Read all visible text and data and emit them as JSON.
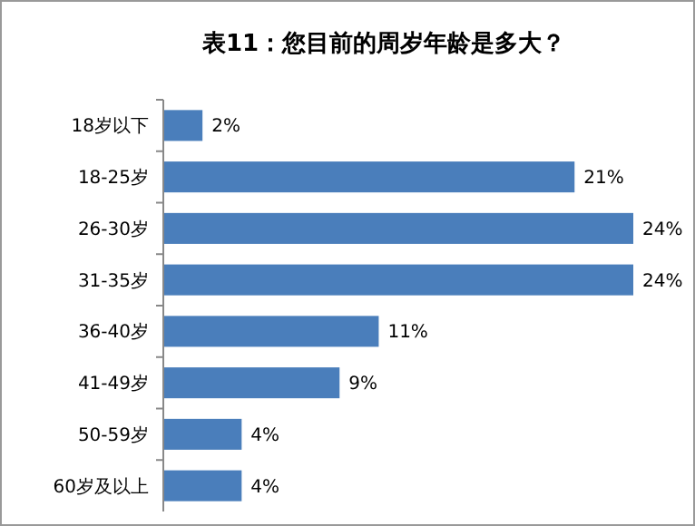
{
  "chart_data": {
    "type": "bar",
    "orientation": "horizontal",
    "title": "表11：您目前的周岁年龄是多大？",
    "categories": [
      "18岁以下",
      "18-25岁",
      "26-30岁",
      "31-35岁",
      "36-40岁",
      "41-49岁",
      "50-59岁",
      "60岁及以上"
    ],
    "values": [
      2,
      21,
      24,
      24,
      11,
      9,
      4,
      4
    ],
    "value_labels": [
      "2%",
      "21%",
      "24%",
      "24%",
      "11%",
      "9%",
      "4%",
      "4%"
    ],
    "color": "#4a7ebb"
  }
}
